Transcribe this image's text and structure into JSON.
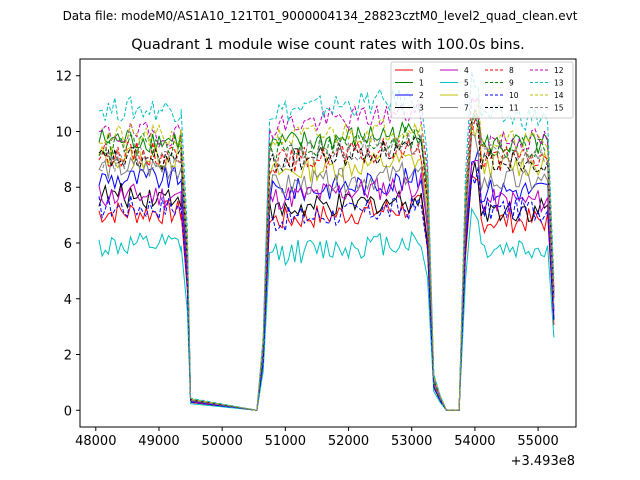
{
  "chart_data": {
    "type": "line",
    "suptitle": "Data file: modeM0/AS1A10_121T01_9000004134_28823cztM0_level2_quad_clean.evt",
    "title": "Quadrant 1 module wise count rates with 100.0s bins.",
    "xlabel": "",
    "ylabel": "",
    "x_offset_label": "+3.493e8",
    "xlim": [
      47750,
      55600
    ],
    "ylim": [
      -0.6,
      12.6
    ],
    "x_ticks": [
      48000,
      49000,
      50000,
      51000,
      52000,
      53000,
      54000,
      55000
    ],
    "x_tick_labels": [
      "48000",
      "49000",
      "50000",
      "51000",
      "52000",
      "53000",
      "54000",
      "55000"
    ],
    "y_ticks": [
      0,
      2,
      4,
      6,
      8,
      10,
      12
    ],
    "y_tick_labels": [
      "0",
      "2",
      "4",
      "6",
      "8",
      "10",
      "12"
    ],
    "legend_position": "top-right",
    "legend_columns": 4,
    "segments": [
      {
        "name": "seg1",
        "x_start": 48050,
        "x_end": 49350
      },
      {
        "name": "seg2",
        "x_start": 50750,
        "x_end": 53150
      },
      {
        "name": "seg3",
        "x_start": 53950,
        "x_end": 55150
      }
    ],
    "drop_points": {
      "x": [
        49350,
        49450,
        49500,
        50550,
        50650
      ],
      "fraction": [
        1.0,
        0.6,
        0.04,
        0.0,
        0.25
      ]
    },
    "drop_points_2": {
      "x": [
        53250,
        53350,
        53450,
        53550,
        53750,
        53850
      ],
      "fraction": [
        0.85,
        0.12,
        0.05,
        0.0,
        0.0,
        0.8
      ]
    },
    "end_drop": {
      "x": 55250,
      "fraction": 0.45
    },
    "series": [
      {
        "name": "0",
        "color": "#ff0000",
        "dashed": false,
        "level": [
          7.1,
          6.8,
          6.8
        ]
      },
      {
        "name": "1",
        "color": "#008000",
        "dashed": false,
        "level": [
          9.7,
          9.5,
          9.5
        ]
      },
      {
        "name": "2",
        "color": "#0000ff",
        "dashed": false,
        "level": [
          8.3,
          7.8,
          7.9
        ]
      },
      {
        "name": "3",
        "color": "#000000",
        "dashed": false,
        "level": [
          7.7,
          7.1,
          7.2
        ]
      },
      {
        "name": "4",
        "color": "#bf00bf",
        "dashed": false,
        "level": [
          7.7,
          7.6,
          7.5
        ]
      },
      {
        "name": "5",
        "color": "#00bfbf",
        "dashed": false,
        "level": [
          5.9,
          5.6,
          5.8
        ]
      },
      {
        "name": "6",
        "color": "#bfbf00",
        "dashed": false,
        "level": [
          9.1,
          8.5,
          8.8
        ]
      },
      {
        "name": "7",
        "color": "#808080",
        "dashed": false,
        "level": [
          8.7,
          8.0,
          8.2
        ]
      },
      {
        "name": "8",
        "color": "#ff0000",
        "dashed": true,
        "level": [
          9.2,
          8.9,
          9.0
        ]
      },
      {
        "name": "9",
        "color": "#008000",
        "dashed": true,
        "level": [
          9.5,
          9.3,
          9.4
        ]
      },
      {
        "name": "10",
        "color": "#0000ff",
        "dashed": true,
        "level": [
          7.3,
          6.8,
          7.2
        ]
      },
      {
        "name": "11",
        "color": "#000000",
        "dashed": true,
        "level": [
          9.0,
          8.9,
          9.0
        ]
      },
      {
        "name": "12",
        "color": "#bf00bf",
        "dashed": true,
        "level": [
          9.9,
          10.2,
          9.7
        ]
      },
      {
        "name": "13",
        "color": "#00bfbf",
        "dashed": true,
        "level": [
          10.8,
          10.7,
          10.5
        ]
      },
      {
        "name": "14",
        "color": "#bfbf00",
        "dashed": true,
        "level": [
          9.8,
          9.7,
          9.6
        ]
      },
      {
        "name": "15",
        "color": "#808080",
        "dashed": true,
        "level": [
          9.0,
          9.1,
          9.1
        ]
      }
    ]
  }
}
